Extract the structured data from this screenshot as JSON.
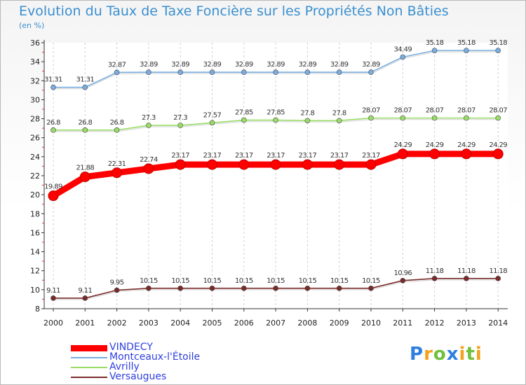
{
  "chart_data": {
    "type": "line",
    "title": "Evolution du Taux de Taxe Foncière sur les Propriétés Non Bâties",
    "subtitle": "(en %)",
    "xlabel": "",
    "ylabel": "(en %)",
    "ylim": [
      8,
      36
    ],
    "yticks": [
      "8",
      "10",
      "12",
      "14",
      "16",
      "18",
      "20",
      "22",
      "24",
      "26",
      "28",
      "30",
      "32",
      "34",
      "36"
    ],
    "categories": [
      "2000",
      "2001",
      "2002",
      "2003",
      "2004",
      "2005",
      "2006",
      "2007",
      "2008",
      "2009",
      "2010",
      "2011",
      "2012",
      "2013",
      "2014"
    ],
    "grid": "vertical-dashed",
    "legend_position": "bottom-left",
    "series": [
      {
        "name": "VINDECY",
        "color": "#ff0000",
        "values": [
          19.89,
          21.88,
          22.31,
          22.74,
          23.17,
          23.17,
          23.17,
          23.17,
          23.17,
          23.17,
          23.17,
          24.29,
          24.29,
          24.29,
          24.29
        ],
        "labels": [
          "19.89",
          "21.88",
          "22.31",
          "22.74",
          "23.17",
          "23.17",
          "23.17",
          "23.17",
          "23.17",
          "23.17",
          "23.17",
          "24.29",
          "24.29",
          "24.29",
          "24.29"
        ]
      },
      {
        "name": "Montceaux-l'Étoile",
        "color": "#7aaee0",
        "values": [
          31.31,
          31.31,
          32.87,
          32.89,
          32.89,
          32.89,
          32.89,
          32.89,
          32.89,
          32.89,
          32.89,
          34.49,
          35.18,
          35.18,
          35.18
        ],
        "labels": [
          "31.31",
          "31.31",
          "32.87",
          "32.89",
          "32.89",
          "32.89",
          "32.89",
          "32.89",
          "32.89",
          "32.89",
          "32.89",
          "34.49",
          "35.18",
          "35.18",
          "35.18"
        ]
      },
      {
        "name": "Avrilly",
        "color": "#99dd66",
        "values": [
          26.8,
          26.8,
          26.8,
          27.3,
          27.3,
          27.57,
          27.85,
          27.85,
          27.8,
          27.8,
          28.07,
          28.07,
          28.07,
          28.07,
          28.07
        ],
        "labels": [
          "26.8",
          "26.8",
          "26.8",
          "27.3",
          "27.3",
          "27.57",
          "27.85",
          "27.85",
          "27.8",
          "27.8",
          "28.07",
          "28.07",
          "28.07",
          "28.07",
          "28.07"
        ]
      },
      {
        "name": "Versaugues",
        "color": "#7a2a2a",
        "values": [
          9.11,
          9.11,
          9.95,
          10.15,
          10.15,
          10.15,
          10.15,
          10.15,
          10.15,
          10.15,
          10.15,
          10.96,
          11.18,
          11.18,
          11.18
        ],
        "labels": [
          "9.11",
          "9.11",
          "9.95",
          "10.15",
          "10.15",
          "10.15",
          "10.15",
          "10.15",
          "10.15",
          "10.15",
          "10.15",
          "10.96",
          "11.18",
          "11.18",
          "11.18"
        ]
      }
    ]
  },
  "brand": {
    "logo_letters": [
      "P",
      "r",
      "o",
      "x",
      "i",
      "t",
      "i"
    ],
    "logo_colors": [
      "#2f7fe0",
      "#f2a21c",
      "#6fc03a",
      "#2f7fe0",
      "#f2a21c",
      "#6fc03a",
      "#f2a21c"
    ]
  }
}
